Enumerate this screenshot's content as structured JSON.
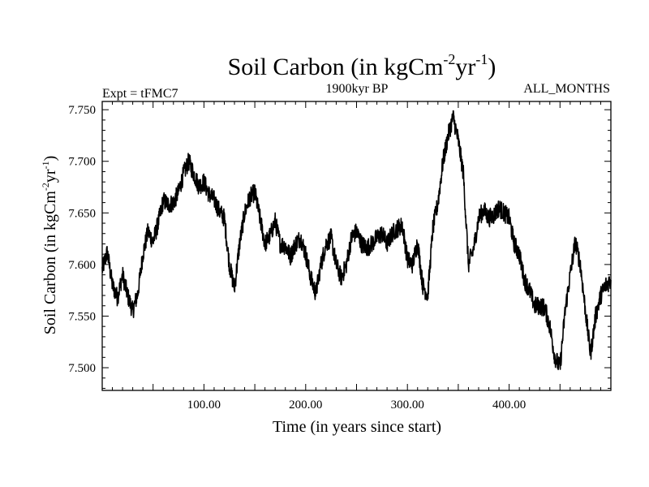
{
  "chart_data": {
    "type": "line",
    "title": "Soil Carbon (in kgCm-2yr-1)",
    "title_parts": {
      "main": "Soil Carbon (in kgCm",
      "exp1": "-2",
      "mid": "yr",
      "exp2": "-1",
      "end": ")"
    },
    "subtitle_left": "Expt = tFMC7",
    "subtitle_center": "1900kyr BP",
    "subtitle_right": "ALL_MONTHS",
    "xlabel": "Time (in years since start)",
    "ylabel": "Soil Carbon (in kgCm-2yr-1)",
    "ylabel_parts": {
      "main": "Soil Carbon (in kgCm",
      "exp1": "-2",
      "mid": "yr",
      "exp2": "-1",
      "end": ")"
    },
    "xlim": [
      0,
      500
    ],
    "ylim": [
      7.478,
      7.758
    ],
    "x_ticks": [
      100,
      200,
      300,
      400
    ],
    "x_tick_labels": [
      "100.00",
      "200.00",
      "300.00",
      "400.00"
    ],
    "y_ticks": [
      7.5,
      7.55,
      7.6,
      7.65,
      7.7,
      7.75
    ],
    "y_tick_labels": [
      "7.500",
      "7.550",
      "7.600",
      "7.650",
      "7.700",
      "7.750"
    ],
    "series": [
      {
        "color": "#000000",
        "x": [
          0,
          5,
          10,
          15,
          20,
          25,
          30,
          35,
          40,
          45,
          50,
          55,
          60,
          65,
          70,
          75,
          80,
          85,
          90,
          95,
          100,
          105,
          110,
          115,
          120,
          125,
          130,
          135,
          140,
          145,
          150,
          155,
          160,
          165,
          170,
          175,
          180,
          185,
          190,
          195,
          200,
          205,
          210,
          215,
          220,
          225,
          230,
          235,
          240,
          245,
          250,
          255,
          260,
          265,
          270,
          275,
          280,
          285,
          290,
          295,
          300,
          305,
          310,
          315,
          320,
          325,
          330,
          335,
          340,
          345,
          350,
          355,
          360,
          365,
          370,
          375,
          380,
          385,
          390,
          395,
          400,
          405,
          410,
          415,
          420,
          425,
          430,
          435,
          440,
          445,
          450,
          455,
          460,
          465,
          470,
          475,
          480,
          485,
          490,
          495,
          500
        ],
        "y": [
          7.595,
          7.612,
          7.58,
          7.568,
          7.59,
          7.57,
          7.555,
          7.572,
          7.61,
          7.632,
          7.622,
          7.64,
          7.662,
          7.658,
          7.66,
          7.67,
          7.688,
          7.7,
          7.688,
          7.676,
          7.68,
          7.668,
          7.663,
          7.652,
          7.645,
          7.6,
          7.577,
          7.62,
          7.65,
          7.665,
          7.67,
          7.645,
          7.62,
          7.628,
          7.642,
          7.62,
          7.618,
          7.608,
          7.62,
          7.626,
          7.61,
          7.587,
          7.572,
          7.6,
          7.62,
          7.626,
          7.6,
          7.587,
          7.6,
          7.626,
          7.632,
          7.62,
          7.616,
          7.62,
          7.626,
          7.63,
          7.62,
          7.63,
          7.635,
          7.638,
          7.605,
          7.6,
          7.622,
          7.58,
          7.57,
          7.635,
          7.66,
          7.7,
          7.725,
          7.743,
          7.72,
          7.688,
          7.6,
          7.615,
          7.645,
          7.653,
          7.645,
          7.648,
          7.655,
          7.65,
          7.645,
          7.62,
          7.61,
          7.585,
          7.575,
          7.56,
          7.56,
          7.558,
          7.54,
          7.51,
          7.5,
          7.555,
          7.59,
          7.622,
          7.6,
          7.555,
          7.513,
          7.55,
          7.57,
          7.58,
          7.585
        ]
      }
    ],
    "grid": false,
    "legend": "none"
  }
}
